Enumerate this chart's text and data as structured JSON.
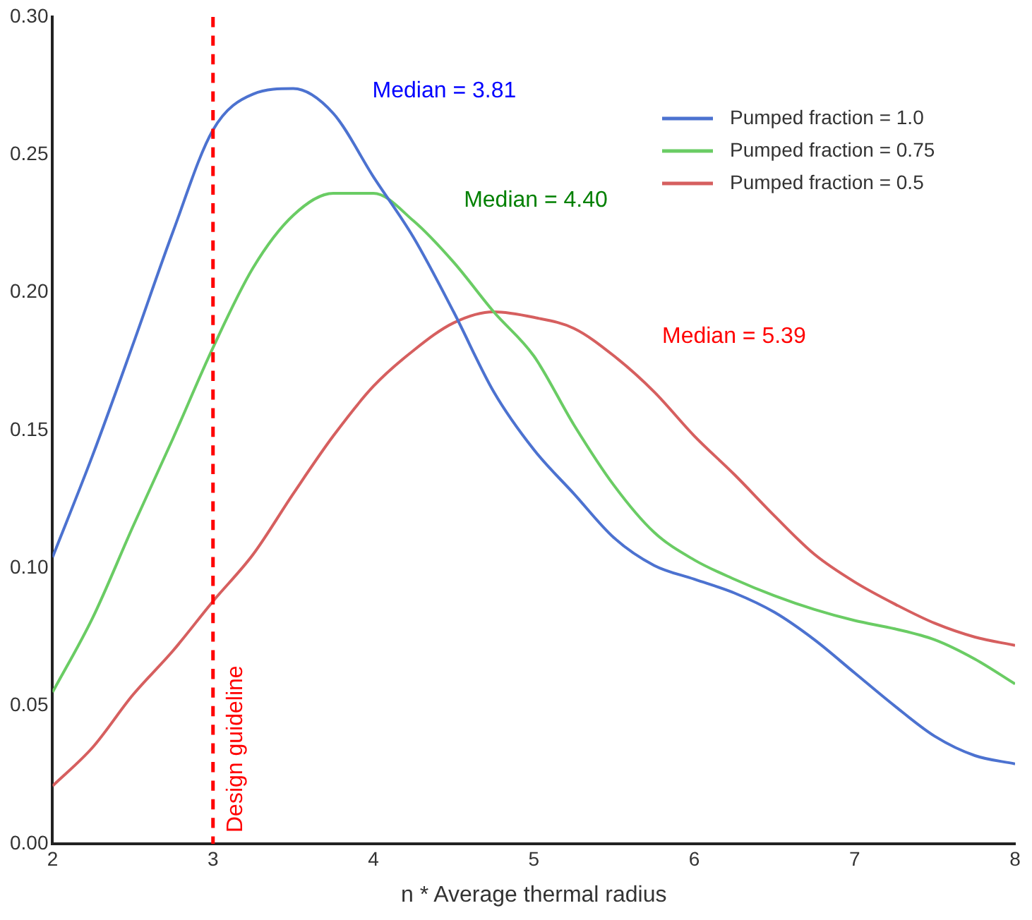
{
  "chart_data": {
    "type": "line",
    "xlabel": "n * Average thermal radius",
    "xlim": [
      2,
      8
    ],
    "xticks": [
      2,
      3,
      4,
      5,
      6,
      7,
      8
    ],
    "ylim": [
      0,
      0.3
    ],
    "yticks": [
      {
        "value": 0,
        "label": "0.00"
      },
      {
        "value": 0.05,
        "label": "0.05"
      },
      {
        "value": 0.1,
        "label": "0.10"
      },
      {
        "value": 0.15,
        "label": "0.15"
      },
      {
        "value": 0.2,
        "label": "0.20"
      },
      {
        "value": 0.25,
        "label": "0.25"
      },
      {
        "value": 0.3,
        "label": "0.30"
      }
    ],
    "grid": false,
    "legend": "top right",
    "marker": "none",
    "line_style": "solid",
    "x": [
      2,
      2.25,
      2.5,
      2.75,
      3,
      3.25,
      3.5,
      3.75,
      4,
      4.25,
      4.5,
      4.75,
      5,
      5.25,
      5.5,
      5.75,
      6,
      6.25,
      6.5,
      6.75,
      7,
      7.25,
      7.5,
      7.75,
      8
    ],
    "series": [
      {
        "name": "Pumped fraction = 1.0",
        "color": "#4c72d0",
        "values": [
          0.104,
          0.141,
          0.181,
          0.222,
          0.259,
          0.272,
          0.274,
          0.265,
          0.242,
          0.22,
          0.193,
          0.164,
          0.143,
          0.127,
          0.111,
          0.101,
          0.096,
          0.091,
          0.084,
          0.074,
          0.062,
          0.05,
          0.039,
          0.032,
          0.029
        ]
      },
      {
        "name": "Pumped fraction = 0.75",
        "color": "#6acc64",
        "values": [
          0.055,
          0.082,
          0.115,
          0.147,
          0.18,
          0.209,
          0.228,
          0.236,
          0.236,
          0.226,
          0.211,
          0.193,
          0.177,
          0.152,
          0.13,
          0.113,
          0.103,
          0.096,
          0.09,
          0.085,
          0.081,
          0.078,
          0.074,
          0.067,
          0.058
        ]
      },
      {
        "name": "Pumped fraction = 0.5",
        "color": "#d65f5f",
        "values": [
          0.021,
          0.035,
          0.054,
          0.07,
          0.088,
          0.105,
          0.127,
          0.148,
          0.166,
          0.179,
          0.189,
          0.193,
          0.191,
          0.187,
          0.177,
          0.164,
          0.148,
          0.134,
          0.119,
          0.105,
          0.095,
          0.087,
          0.08,
          0.075,
          0.072
        ]
      }
    ],
    "ref_lines": [
      {
        "axis": "x",
        "value": 3,
        "label": "Design guideline",
        "color": "#ff0000",
        "line_style": "dashed"
      }
    ],
    "annotations": [
      "Median = 3.81",
      "Median = 4.40",
      "Median = 5.39"
    ]
  }
}
